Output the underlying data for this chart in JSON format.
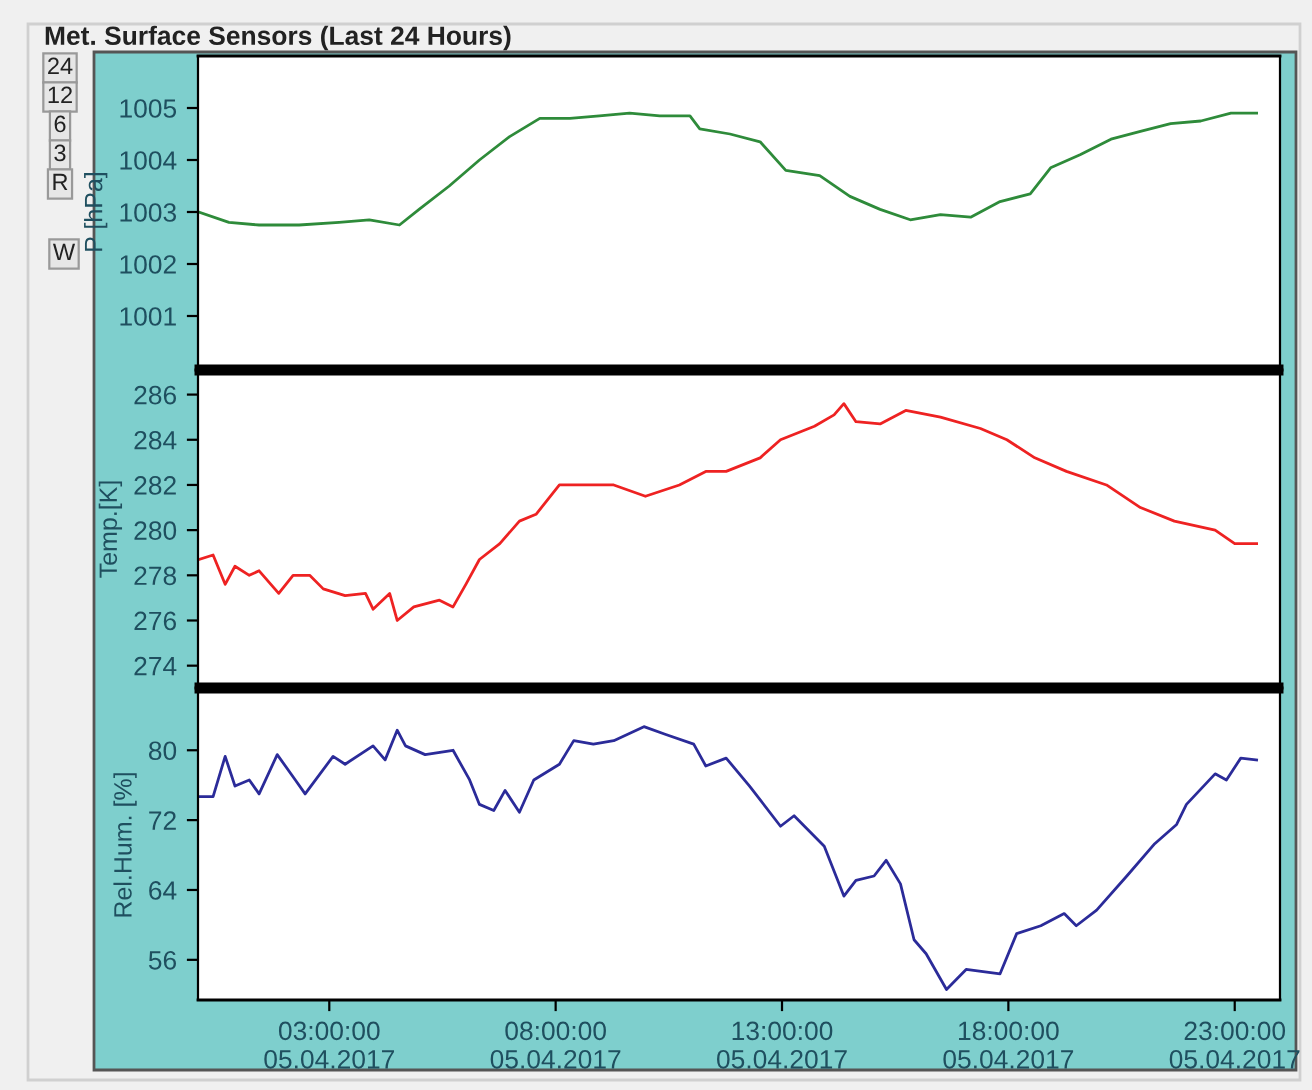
{
  "chart_data": [
    {
      "type": "line",
      "title": "Met. Surface Sensors (Last 24 Hours)",
      "annotations": [
        "24",
        "12",
        "6",
        "3",
        "R",
        "W"
      ],
      "ylabel": "P [hPa]",
      "xlim": [
        "2017-04-05T00:06",
        "2017-04-06T00:00"
      ],
      "ylim": [
        1000,
        1006
      ],
      "yticks": [
        1001,
        1002,
        1003,
        1004,
        1005
      ],
      "tick_labels": "y",
      "grid": false,
      "legend": false,
      "series": [
        {
          "color": "#2e8b3a",
          "x": [
            "2017-04-05T00:07",
            "2017-04-05T00:47",
            "2017-04-05T01:27",
            "2017-04-05T02:20",
            "2017-04-05T03:13",
            "2017-04-05T03:53",
            "2017-04-05T04:33",
            "2017-04-05T04:59",
            "2017-04-05T05:39",
            "2017-04-05T06:19",
            "2017-04-05T06:59",
            "2017-04-05T07:39",
            "2017-04-05T08:19",
            "2017-04-05T08:58",
            "2017-04-05T09:38",
            "2017-04-05T10:18",
            "2017-04-05T10:58",
            "2017-04-05T11:11",
            "2017-04-05T11:51",
            "2017-04-05T12:31",
            "2017-04-05T13:05",
            "2017-04-05T13:50",
            "2017-04-05T14:30",
            "2017-04-05T15:10",
            "2017-04-05T15:50",
            "2017-04-05T16:30",
            "2017-04-05T17:10",
            "2017-04-05T17:49",
            "2017-04-05T18:29",
            "2017-04-05T18:56",
            "2017-04-05T19:35",
            "2017-04-05T20:16",
            "2017-04-05T20:55",
            "2017-04-05T21:35",
            "2017-04-05T22:15",
            "2017-04-05T22:55",
            "2017-04-05T23:29"
          ],
          "values": [
            1003.0,
            1002.8,
            1002.75,
            1002.75,
            1002.8,
            1002.85,
            1002.75,
            1003.05,
            1003.5,
            1004.0,
            1004.45,
            1004.8,
            1004.8,
            1004.85,
            1004.9,
            1004.85,
            1004.85,
            1004.6,
            1004.5,
            1004.35,
            1003.8,
            1003.7,
            1003.3,
            1003.05,
            1002.85,
            1002.95,
            1002.9,
            1003.2,
            1003.35,
            1003.85,
            1004.1,
            1004.4,
            1004.55,
            1004.7,
            1004.75,
            1004.9,
            1004.9
          ]
        }
      ]
    },
    {
      "type": "line",
      "ylabel": "Temp.[K]",
      "xlim": [
        "2017-04-05T00:06",
        "2017-04-06T00:00"
      ],
      "ylim": [
        273.1,
        287
      ],
      "yticks": [
        274,
        276,
        278,
        280,
        282,
        284,
        286
      ],
      "tick_labels": "y",
      "grid": false,
      "legend": false,
      "series": [
        {
          "color": "#ee2222",
          "x": [
            "2017-04-05T00:07",
            "2017-04-05T00:26",
            "2017-04-05T00:42",
            "2017-04-05T00:55",
            "2017-04-05T01:14",
            "2017-04-05T01:27",
            "2017-04-05T01:53",
            "2017-04-05T02:12",
            "2017-04-05T02:34",
            "2017-04-05T02:52",
            "2017-04-05T03:21",
            "2017-04-05T03:48",
            "2017-04-05T03:58",
            "2017-04-05T04:20",
            "2017-04-05T04:30",
            "2017-04-05T04:52",
            "2017-04-05T05:26",
            "2017-04-05T05:44",
            "2017-04-05T06:01",
            "2017-04-05T06:19",
            "2017-04-05T06:46",
            "2017-04-05T07:12",
            "2017-04-05T07:34",
            "2017-04-05T08:05",
            "2017-04-05T08:40",
            "2017-04-05T09:17",
            "2017-04-05T09:59",
            "2017-04-05T10:44",
            "2017-04-05T11:19",
            "2017-04-05T11:46",
            "2017-04-05T12:31",
            "2017-04-05T12:58",
            "2017-04-05T13:43",
            "2017-04-05T14:09",
            "2017-04-05T14:22",
            "2017-04-05T14:38",
            "2017-04-05T15:10",
            "2017-04-05T15:44",
            "2017-04-05T16:30",
            "2017-04-05T17:23",
            "2017-04-05T17:58",
            "2017-04-05T18:35",
            "2017-04-05T19:17",
            "2017-04-05T20:10",
            "2017-04-05T20:55",
            "2017-04-05T21:40",
            "2017-04-05T22:34",
            "2017-04-05T23:00",
            "2017-04-05T23:29"
          ],
          "values": [
            278.7,
            278.9,
            277.6,
            278.4,
            278.0,
            278.2,
            277.2,
            278.0,
            278.0,
            277.4,
            277.1,
            277.2,
            276.5,
            277.2,
            276.0,
            276.6,
            276.9,
            276.6,
            277.6,
            278.7,
            279.4,
            280.4,
            280.7,
            282.0,
            282.0,
            282.0,
            281.5,
            282.0,
            282.6,
            282.6,
            283.2,
            284.0,
            284.6,
            285.1,
            285.6,
            284.8,
            284.7,
            285.3,
            285.0,
            284.5,
            284.0,
            283.2,
            282.6,
            282.0,
            281.0,
            280.4,
            280.0,
            279.4,
            279.4
          ]
        }
      ]
    },
    {
      "type": "line",
      "ylabel": "Rel.Hum. [%]",
      "xlim": [
        "2017-04-05T00:06",
        "2017-04-06T00:00"
      ],
      "ylim": [
        51.4,
        86.9
      ],
      "yticks": [
        56,
        64,
        72,
        80
      ],
      "xticks": [
        {
          "value": "2017-04-05T03:00",
          "label": "03:00:00\n05.04.2017"
        },
        {
          "value": "2017-04-05T08:00",
          "label": "08:00:00\n05.04.2017"
        },
        {
          "value": "2017-04-05T13:00",
          "label": "13:00:00\n05.04.2017"
        },
        {
          "value": "2017-04-05T18:00",
          "label": "18:00:00\n05.04.2017"
        },
        {
          "value": "2017-04-05T23:00",
          "label": "23:00:00\n05.04.2017"
        }
      ],
      "grid": false,
      "legend": false,
      "series": [
        {
          "color": "#2b2b99",
          "x": [
            "2017-04-05T00:07",
            "2017-04-05T00:26",
            "2017-04-05T00:42",
            "2017-04-05T00:55",
            "2017-04-05T01:14",
            "2017-04-05T01:27",
            "2017-04-05T01:51",
            "2017-04-05T02:15",
            "2017-04-05T02:28",
            "2017-04-05T03:05",
            "2017-04-05T03:21",
            "2017-04-05T03:58",
            "2017-04-05T04:14",
            "2017-04-05T04:30",
            "2017-04-05T04:41",
            "2017-04-05T05:07",
            "2017-04-05T05:44",
            "2017-04-05T06:06",
            "2017-04-05T06:19",
            "2017-04-05T06:38",
            "2017-04-05T06:53",
            "2017-04-05T07:12",
            "2017-04-05T07:31",
            "2017-04-05T08:05",
            "2017-04-05T08:24",
            "2017-04-05T08:50",
            "2017-04-05T09:17",
            "2017-04-05T09:57",
            "2017-04-05T10:26",
            "2017-04-05T11:03",
            "2017-04-05T11:19",
            "2017-04-05T11:46",
            "2017-04-05T12:17",
            "2017-04-05T12:58",
            "2017-04-05T13:16",
            "2017-04-05T13:56",
            "2017-04-05T14:22",
            "2017-04-05T14:38",
            "2017-04-05T15:02",
            "2017-04-05T15:18",
            "2017-04-05T15:37",
            "2017-04-05T15:55",
            "2017-04-05T16:11",
            "2017-04-05T16:38",
            "2017-04-05T17:04",
            "2017-04-05T17:49",
            "2017-04-05T18:11",
            "2017-04-05T18:43",
            "2017-04-05T19:14",
            "2017-04-05T19:30",
            "2017-04-05T19:57",
            "2017-04-05T20:37",
            "2017-04-05T21:14",
            "2017-04-05T21:43",
            "2017-04-05T21:56",
            "2017-04-05T22:34",
            "2017-04-05T22:49",
            "2017-04-05T23:08",
            "2017-04-05T23:29"
          ],
          "values": [
            74.7,
            74.7,
            79.3,
            75.9,
            76.6,
            75.0,
            79.5,
            76.6,
            75.0,
            79.3,
            78.4,
            80.5,
            78.9,
            82.3,
            80.5,
            79.5,
            80.0,
            76.6,
            73.8,
            73.1,
            75.4,
            72.9,
            76.6,
            78.4,
            81.1,
            80.7,
            81.1,
            82.7,
            81.8,
            80.7,
            78.2,
            79.1,
            75.9,
            71.3,
            72.5,
            69.0,
            63.3,
            65.1,
            65.6,
            67.4,
            64.7,
            58.3,
            56.7,
            52.6,
            54.9,
            54.4,
            59.0,
            59.9,
            61.3,
            59.9,
            61.7,
            65.6,
            69.3,
            71.5,
            73.8,
            77.3,
            76.6,
            79.1,
            78.9
          ]
        }
      ]
    }
  ]
}
